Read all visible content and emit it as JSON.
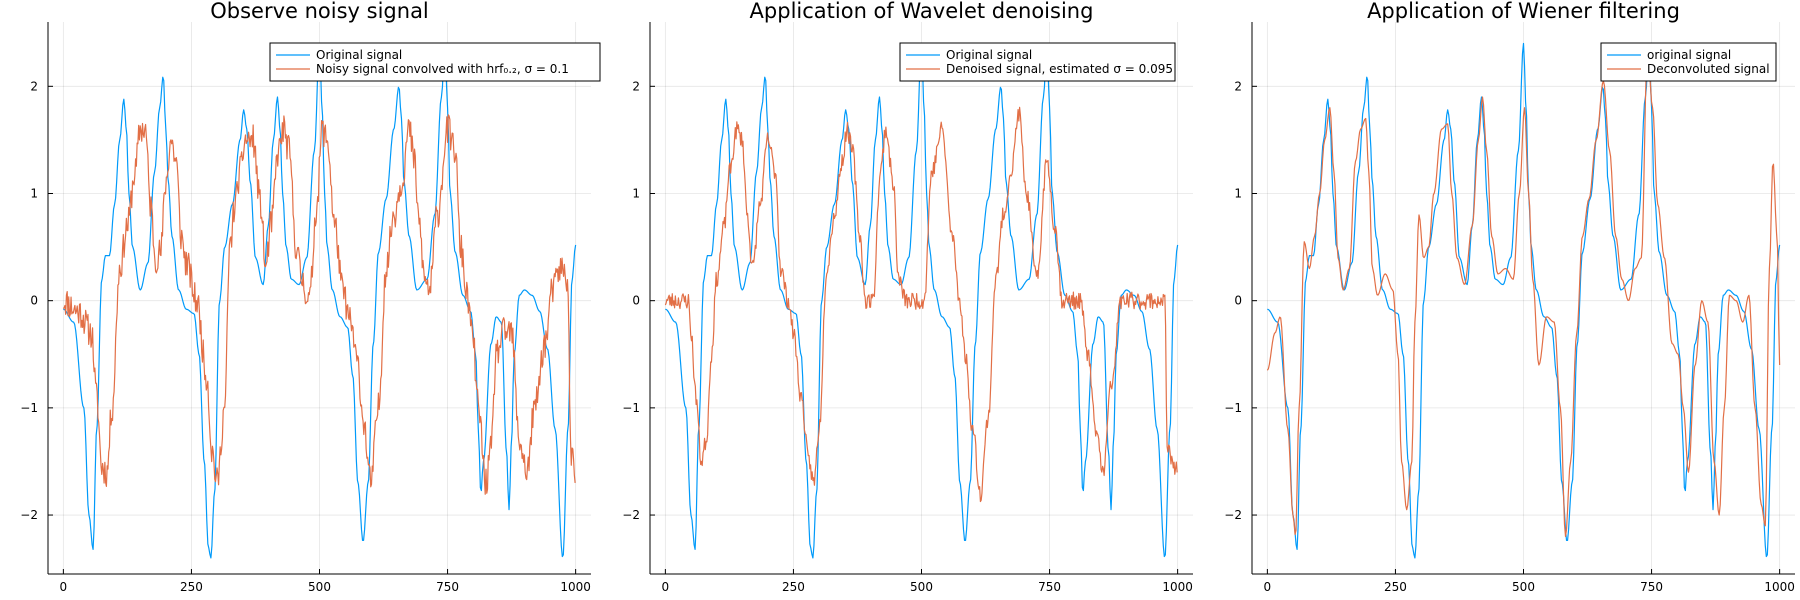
{
  "colors": {
    "original": "#009AFA",
    "processed": "#E26F46",
    "grid": "#000000",
    "axis": "#000000"
  },
  "chart_data": [
    {
      "type": "line",
      "title": "Observe noisy signal",
      "xlim": [
        -30,
        1030
      ],
      "ylim": [
        -2.55,
        2.6
      ],
      "xticks": [
        0,
        250,
        500,
        750,
        1000
      ],
      "yticks": [
        -2,
        -1,
        0,
        1,
        2
      ],
      "xtick_labels": [
        "0",
        "250",
        "500",
        "750",
        "1000"
      ],
      "ytick_labels": [
        "−2",
        "−1",
        "0",
        "1",
        "2"
      ],
      "grid": true,
      "legend_position": "top-right",
      "series": [
        {
          "name": "Original signal",
          "role": "original",
          "x": [
            0,
            20,
            40,
            50,
            58,
            65,
            75,
            82,
            90,
            100,
            110,
            118,
            123,
            128,
            135,
            150,
            165,
            178,
            188,
            195,
            200,
            205,
            212,
            225,
            240,
            255,
            265,
            275,
            283,
            288,
            295,
            305,
            315,
            330,
            345,
            352,
            358,
            365,
            375,
            390,
            400,
            410,
            418,
            423,
            428,
            435,
            445,
            460,
            475,
            490,
            500,
            505,
            510,
            515,
            525,
            540,
            555,
            565,
            575,
            585,
            595,
            605,
            615,
            630,
            645,
            655,
            660,
            665,
            675,
            690,
            710,
            725,
            738,
            745,
            750,
            755,
            765,
            780,
            795,
            805,
            810,
            815,
            820,
            835,
            845,
            855,
            865,
            870,
            875,
            880,
            890,
            900,
            915,
            930,
            945,
            960,
            975,
            985,
            993,
            1000
          ],
          "y": [
            -0.08,
            -0.2,
            -1.0,
            -2.0,
            -2.32,
            -1.2,
            0.2,
            0.42,
            0.42,
            0.9,
            1.5,
            1.88,
            1.6,
            1.0,
            0.5,
            0.1,
            0.35,
            1.2,
            1.8,
            2.1,
            1.6,
            1.1,
            0.6,
            0.1,
            -0.08,
            -0.12,
            -0.5,
            -1.5,
            -2.3,
            -2.4,
            -1.8,
            0.0,
            0.5,
            0.9,
            1.5,
            1.78,
            1.6,
            1.1,
            0.4,
            0.15,
            0.7,
            1.5,
            1.9,
            1.6,
            1.0,
            0.5,
            0.2,
            0.15,
            0.4,
            1.4,
            2.4,
            1.8,
            1.0,
            0.5,
            0.1,
            -0.15,
            -0.25,
            -0.7,
            -1.7,
            -2.25,
            -1.7,
            -0.4,
            0.45,
            0.95,
            1.6,
            2.0,
            1.7,
            1.1,
            0.6,
            0.1,
            0.2,
            0.8,
            1.9,
            2.4,
            1.8,
            1.0,
            0.45,
            0.05,
            -0.1,
            -0.5,
            -1.2,
            -1.8,
            -1.5,
            -0.4,
            -0.15,
            -0.2,
            -1.4,
            -1.95,
            -1.3,
            -0.5,
            0.05,
            0.1,
            0.05,
            -0.1,
            -0.45,
            -1.2,
            -2.4,
            -1.2,
            0.2,
            0.52
          ]
        },
        {
          "name": "Noisy signal convolved with hrf₀.₂, σ = 0.1",
          "role": "processed",
          "noise": 0.09,
          "seed": 11,
          "x": [
            0,
            30,
            55,
            65,
            75,
            85,
            95,
            110,
            125,
            140,
            150,
            160,
            170,
            180,
            190,
            200,
            210,
            220,
            230,
            240,
            260,
            280,
            290,
            300,
            315,
            325,
            335,
            345,
            355,
            370,
            385,
            395,
            405,
            420,
            430,
            440,
            455,
            465,
            480,
            495,
            505,
            515,
            530,
            545,
            560,
            575,
            585,
            600,
            615,
            630,
            645,
            660,
            675,
            685,
            695,
            705,
            715,
            730,
            750,
            765,
            775,
            790,
            800,
            810,
            825,
            835,
            845,
            860,
            875,
            890,
            905,
            920,
            940,
            955,
            970,
            985,
            990,
            1000
          ],
          "y": [
            0.0,
            -0.1,
            -0.3,
            -0.9,
            -1.55,
            -1.6,
            -1.0,
            0.3,
            0.7,
            1.2,
            1.6,
            1.6,
            0.9,
            0.4,
            0.45,
            1.1,
            1.5,
            1.3,
            0.6,
            0.35,
            0.0,
            -0.7,
            -1.4,
            -1.7,
            -1.0,
            0.5,
            0.9,
            1.2,
            1.5,
            1.5,
            0.9,
            0.3,
            0.7,
            1.4,
            1.6,
            1.4,
            0.5,
            0.2,
            0.0,
            0.9,
            1.6,
            1.5,
            0.7,
            0.1,
            -0.2,
            -0.6,
            -1.1,
            -1.7,
            -1.0,
            0.3,
            0.8,
            1.1,
            1.6,
            1.3,
            0.7,
            0.2,
            0.1,
            0.8,
            1.6,
            1.4,
            0.5,
            0.0,
            -0.4,
            -1.0,
            -1.7,
            -1.4,
            -0.5,
            -0.3,
            -0.3,
            -1.3,
            -1.6,
            -1.0,
            -0.4,
            0.1,
            0.3,
            0.2,
            -1.4,
            -1.6
          ]
        }
      ]
    },
    {
      "type": "line",
      "title": "Application of Wavelet denoising",
      "xlim": [
        -30,
        1030
      ],
      "ylim": [
        -2.55,
        2.6
      ],
      "xticks": [
        0,
        250,
        500,
        750,
        1000
      ],
      "yticks": [
        -2,
        -1,
        0,
        1,
        2
      ],
      "xtick_labels": [
        "0",
        "250",
        "500",
        "750",
        "1000"
      ],
      "ytick_labels": [
        "−2",
        "−1",
        "0",
        "1",
        "2"
      ],
      "grid": true,
      "legend_position": "top-right",
      "series": [
        {
          "name": "Original signal",
          "role": "original",
          "ref": 0
        },
        {
          "name": "Denoised signal, estimated σ = 0.095",
          "role": "processed",
          "noise": 0.05,
          "seed": 23,
          "x": [
            0,
            20,
            45,
            50,
            60,
            70,
            80,
            90,
            100,
            115,
            125,
            140,
            150,
            160,
            170,
            185,
            200,
            215,
            225,
            240,
            250,
            265,
            280,
            290,
            300,
            315,
            330,
            345,
            355,
            365,
            380,
            390,
            405,
            420,
            430,
            445,
            455,
            470,
            495,
            505,
            520,
            540,
            560,
            575,
            585,
            600,
            615,
            630,
            645,
            660,
            675,
            690,
            705,
            725,
            745,
            760,
            775,
            790,
            810,
            825,
            840,
            855,
            870,
            890,
            900,
            935,
            975,
            980,
            990,
            1000
          ],
          "y": [
            0.0,
            0.0,
            0.0,
            -0.3,
            -0.9,
            -1.5,
            -1.3,
            -0.5,
            0.2,
            0.7,
            1.2,
            1.6,
            1.5,
            0.8,
            0.3,
            0.9,
            1.5,
            1.2,
            0.3,
            0.0,
            -0.3,
            -0.9,
            -1.5,
            -1.7,
            -1.2,
            0.3,
            0.8,
            1.3,
            1.6,
            1.4,
            0.6,
            0.0,
            0.0,
            1.2,
            1.6,
            1.1,
            0.2,
            0.0,
            0.0,
            0.0,
            1.2,
            1.6,
            0.6,
            0.0,
            -0.5,
            -1.2,
            -1.8,
            -1.1,
            0.2,
            0.8,
            1.2,
            1.75,
            1.0,
            0.2,
            1.3,
            0.7,
            0.0,
            0.0,
            0.0,
            -0.5,
            -1.2,
            -1.6,
            -0.8,
            0.0,
            0.0,
            0.0,
            0.0,
            -1.4,
            -1.5,
            -1.6
          ]
        }
      ]
    },
    {
      "type": "line",
      "title": "Application of Wiener filtering",
      "xlim": [
        -30,
        1030
      ],
      "ylim": [
        -2.55,
        2.6
      ],
      "xticks": [
        0,
        250,
        500,
        750,
        1000
      ],
      "yticks": [
        -2,
        -1,
        0,
        1,
        2
      ],
      "xtick_labels": [
        "0",
        "250",
        "500",
        "750",
        "1000"
      ],
      "ytick_labels": [
        "−2",
        "−1",
        "0",
        "1",
        "2"
      ],
      "grid": true,
      "legend_position": "top-right",
      "series": [
        {
          "name": "original signal",
          "role": "original",
          "ref": 0
        },
        {
          "name": "Deconvoluted signal",
          "role": "processed",
          "noise": 0.0,
          "seed": 5,
          "x": [
            0,
            15,
            25,
            40,
            50,
            55,
            62,
            72,
            82,
            92,
            102,
            112,
            122,
            130,
            138,
            148,
            160,
            172,
            182,
            192,
            198,
            205,
            215,
            230,
            245,
            255,
            262,
            272,
            282,
            288,
            296,
            305,
            315,
            325,
            340,
            352,
            360,
            370,
            385,
            400,
            412,
            420,
            428,
            438,
            450,
            465,
            480,
            492,
            502,
            510,
            518,
            530,
            545,
            560,
            572,
            582,
            592,
            604,
            615,
            628,
            642,
            656,
            668,
            680,
            692,
            705,
            718,
            730,
            742,
            752,
            762,
            775,
            790,
            802,
            812,
            822,
            835,
            848,
            860,
            872,
            882,
            892,
            902,
            915,
            928,
            940,
            952,
            964,
            972,
            980,
            987,
            995,
            1000
          ],
          "y": [
            -0.65,
            -0.3,
            -0.15,
            -1.2,
            -2.0,
            -2.2,
            -1.0,
            0.55,
            0.3,
            0.6,
            1.0,
            1.5,
            1.8,
            1.2,
            0.4,
            0.1,
            0.3,
            1.3,
            1.6,
            1.7,
            1.2,
            0.3,
            0.05,
            0.25,
            0.1,
            -0.5,
            -1.5,
            -1.95,
            -1.5,
            -0.2,
            0.8,
            0.4,
            0.5,
            1.0,
            1.6,
            1.65,
            1.0,
            0.4,
            0.15,
            0.7,
            1.5,
            1.9,
            1.4,
            0.6,
            0.25,
            0.3,
            0.2,
            1.0,
            1.8,
            1.0,
            0.2,
            -0.6,
            -0.15,
            -0.2,
            -1.0,
            -2.2,
            -1.5,
            -0.3,
            0.6,
            0.95,
            1.5,
            2.05,
            1.4,
            0.6,
            0.2,
            0.0,
            0.3,
            0.4,
            2.35,
            1.8,
            0.9,
            0.4,
            -0.4,
            -0.5,
            -1.0,
            -1.6,
            -0.6,
            0.0,
            -0.2,
            -1.5,
            -2.0,
            -1.0,
            0.05,
            0.0,
            -0.2,
            0.05,
            -1.0,
            -1.9,
            -2.1,
            0.3,
            1.3,
            0.6,
            -0.6
          ]
        }
      ]
    }
  ]
}
